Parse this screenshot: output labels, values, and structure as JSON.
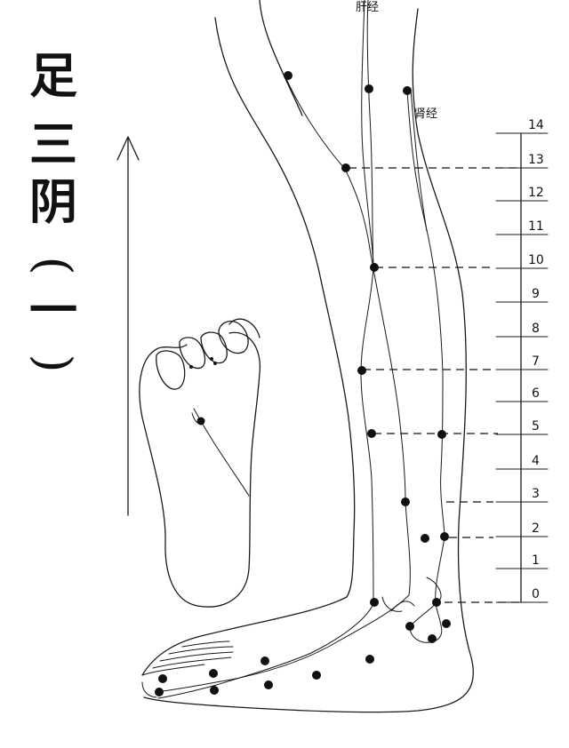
{
  "title": {
    "chars": [
      "足",
      "三",
      "阴",
      "(",
      "一",
      ")"
    ]
  },
  "labels": {
    "liver_meridian": "肝经",
    "kidney_meridian": "肾经"
  },
  "scale": {
    "ticks": [
      "14",
      "13",
      "12",
      "11",
      "10",
      "9",
      "8",
      "7",
      "6",
      "5",
      "4",
      "3",
      "2",
      "1",
      "0"
    ]
  }
}
